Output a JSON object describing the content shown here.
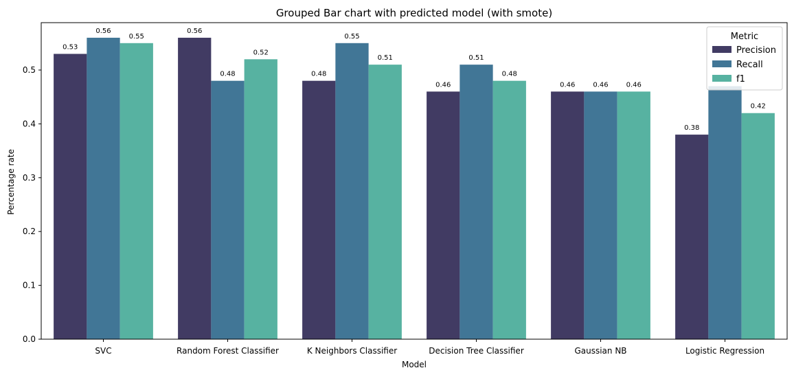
{
  "chart_data": {
    "type": "bar",
    "title": "Grouped Bar chart with predicted model (with smote)",
    "xlabel": "Model",
    "ylabel": "Percentage rate",
    "categories": [
      "SVC",
      "Random Forest Classifier",
      "K Neighbors Classifier",
      "Decision Tree Classifier",
      "Gaussian NB",
      "Logistic Regression"
    ],
    "series": [
      {
        "name": "Precision",
        "values": [
          0.53,
          0.56,
          0.48,
          0.46,
          0.46,
          0.38
        ],
        "color": "#413b63"
      },
      {
        "name": "Recall",
        "values": [
          0.56,
          0.48,
          0.55,
          0.51,
          0.46,
          0.47
        ],
        "color": "#417696"
      },
      {
        "name": "f1",
        "values": [
          0.55,
          0.52,
          0.51,
          0.48,
          0.46,
          0.42
        ],
        "color": "#57b2a1"
      }
    ],
    "data_labels": [
      [
        "0.53",
        "0.56",
        "0.55"
      ],
      [
        "0.56",
        "0.48",
        "0.52"
      ],
      [
        "0.48",
        "0.55",
        "0.51"
      ],
      [
        "0.46",
        "0.51",
        "0.48"
      ],
      [
        "0.46",
        "0.46",
        "0.46"
      ],
      [
        "0.38",
        "0.47",
        "0.42"
      ]
    ],
    "yticks": [
      0.0,
      0.1,
      0.2,
      0.3,
      0.4,
      0.5
    ],
    "ytick_labels": [
      "0.0",
      "0.1",
      "0.2",
      "0.3",
      "0.4",
      "0.5"
    ],
    "ylim": [
      0,
      0.588
    ],
    "grid": false,
    "legend": {
      "title": "Metric",
      "placement": "top-right"
    }
  }
}
